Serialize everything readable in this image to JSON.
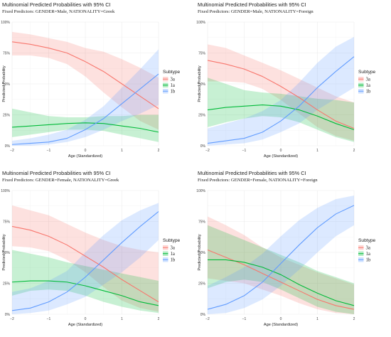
{
  "chart_data": [
    {
      "type": "line",
      "title": "Multinomial Predicted Probabilities with 95% CI",
      "subtitle": "Fixed Predictors:  GENDER=Male, NATIONALITY=Greek",
      "xlabel": "Age (Standardized)",
      "ylabel": "Predicted Probability",
      "xlim": [
        -2,
        2
      ],
      "ylim": [
        0,
        1
      ],
      "x_ticks": [
        -2,
        -1,
        0,
        1,
        2
      ],
      "x_tick_labels": [
        "−2",
        "−1",
        "0",
        "1",
        "2"
      ],
      "y_ticks": [
        0,
        0.25,
        0.5,
        0.75,
        1
      ],
      "y_tick_labels": [
        "0%",
        "25%",
        "50%",
        "75%",
        "100%"
      ],
      "legend_title": "Subtype",
      "legend_position": "right",
      "grid": true,
      "x": [
        -2,
        -1.5,
        -1,
        -0.5,
        0,
        0.5,
        1,
        1.5,
        2
      ],
      "series": [
        {
          "name": "3a",
          "color": "#F8766D",
          "values": [
            0.84,
            0.82,
            0.79,
            0.75,
            0.68,
            0.6,
            0.5,
            0.4,
            0.3
          ],
          "lower": [
            0.73,
            0.73,
            0.71,
            0.66,
            0.56,
            0.43,
            0.31,
            0.2,
            0.13
          ],
          "upper": [
            0.92,
            0.9,
            0.87,
            0.84,
            0.79,
            0.76,
            0.7,
            0.63,
            0.55
          ]
        },
        {
          "name": "1a",
          "color": "#00BA38",
          "values": [
            0.15,
            0.16,
            0.17,
            0.18,
            0.185,
            0.18,
            0.16,
            0.14,
            0.11
          ],
          "lower": [
            0.07,
            0.09,
            0.11,
            0.13,
            0.13,
            0.12,
            0.09,
            0.06,
            0.03
          ],
          "upper": [
            0.3,
            0.27,
            0.24,
            0.23,
            0.23,
            0.24,
            0.24,
            0.25,
            0.25
          ]
        },
        {
          "name": "1b",
          "color": "#619CFF",
          "values": [
            0.01,
            0.02,
            0.03,
            0.06,
            0.13,
            0.22,
            0.34,
            0.46,
            0.58
          ],
          "lower": [
            0.0,
            0.0,
            0.01,
            0.03,
            0.07,
            0.13,
            0.2,
            0.26,
            0.33
          ],
          "upper": [
            0.04,
            0.06,
            0.09,
            0.13,
            0.21,
            0.32,
            0.47,
            0.62,
            0.78
          ]
        }
      ]
    },
    {
      "type": "line",
      "title": "Multinomial Predicted Probabilities with 95% CI",
      "subtitle": "Fixed Predictors:  GENDER=Male, NATIONALITY=Foreign",
      "xlabel": "Age (Standardized)",
      "ylabel": "Predicted Probability",
      "xlim": [
        -2,
        2
      ],
      "ylim": [
        0,
        1
      ],
      "x_ticks": [
        -2,
        -1,
        0,
        1,
        2
      ],
      "x_tick_labels": [
        "−2",
        "−1",
        "0",
        "1",
        "2"
      ],
      "y_ticks": [
        0,
        0.25,
        0.5,
        0.75,
        1
      ],
      "y_tick_labels": [
        "0%",
        "25%",
        "50%",
        "75%",
        "100%"
      ],
      "legend_title": "Subtype",
      "legend_position": "right",
      "grid": true,
      "x": [
        -2,
        -1.5,
        -1,
        -0.5,
        0,
        0.5,
        1,
        1.5,
        2
      ],
      "series": [
        {
          "name": "3a",
          "color": "#F8766D",
          "values": [
            0.69,
            0.66,
            0.62,
            0.56,
            0.48,
            0.39,
            0.29,
            0.2,
            0.14
          ],
          "lower": [
            0.52,
            0.52,
            0.51,
            0.46,
            0.37,
            0.26,
            0.15,
            0.08,
            0.04
          ],
          "upper": [
            0.82,
            0.79,
            0.73,
            0.67,
            0.61,
            0.54,
            0.47,
            0.4,
            0.35
          ]
        },
        {
          "name": "1a",
          "color": "#00BA38",
          "values": [
            0.29,
            0.31,
            0.32,
            0.33,
            0.32,
            0.29,
            0.24,
            0.18,
            0.13
          ],
          "lower": [
            0.15,
            0.19,
            0.22,
            0.24,
            0.23,
            0.19,
            0.13,
            0.07,
            0.03
          ],
          "upper": [
            0.55,
            0.5,
            0.45,
            0.43,
            0.42,
            0.4,
            0.38,
            0.37,
            0.35
          ]
        },
        {
          "name": "1b",
          "color": "#619CFF",
          "values": [
            0.02,
            0.04,
            0.06,
            0.11,
            0.2,
            0.32,
            0.47,
            0.6,
            0.72
          ],
          "lower": [
            0.0,
            0.01,
            0.02,
            0.05,
            0.11,
            0.18,
            0.29,
            0.38,
            0.47
          ],
          "upper": [
            0.14,
            0.18,
            0.22,
            0.28,
            0.37,
            0.51,
            0.67,
            0.8,
            0.88
          ]
        }
      ]
    },
    {
      "type": "line",
      "title": "Multinomial Predicted Probabilities with 95% CI",
      "subtitle": "Fixed Predictors:  GENDER=Female, NATIONALITY=Greek",
      "xlabel": "Age (Standardized)",
      "ylabel": "Predicted Probability",
      "xlim": [
        -2,
        2
      ],
      "ylim": [
        0,
        1
      ],
      "x_ticks": [
        -2,
        -1,
        0,
        1,
        2
      ],
      "x_tick_labels": [
        "−2",
        "−1",
        "0",
        "1",
        "2"
      ],
      "y_ticks": [
        0,
        0.25,
        0.5,
        0.75,
        1
      ],
      "y_tick_labels": [
        "0%",
        "25%",
        "50%",
        "75%",
        "100%"
      ],
      "legend_title": "Subtype",
      "legend_position": "right",
      "grid": true,
      "x": [
        -2,
        -1.5,
        -1,
        -0.5,
        0,
        0.5,
        1,
        1.5,
        2
      ],
      "series": [
        {
          "name": "3a",
          "color": "#F8766D",
          "values": [
            0.71,
            0.68,
            0.63,
            0.56,
            0.47,
            0.38,
            0.28,
            0.19,
            0.1
          ],
          "lower": [
            0.55,
            0.54,
            0.51,
            0.44,
            0.34,
            0.22,
            0.11,
            0.05,
            0.02
          ],
          "upper": [
            0.88,
            0.84,
            0.8,
            0.73,
            0.66,
            0.6,
            0.55,
            0.52,
            0.5
          ]
        },
        {
          "name": "1a",
          "color": "#00BA38",
          "values": [
            0.26,
            0.27,
            0.27,
            0.26,
            0.23,
            0.19,
            0.15,
            0.1,
            0.07
          ],
          "lower": [
            0.15,
            0.19,
            0.2,
            0.19,
            0.15,
            0.1,
            0.06,
            0.03,
            0.01
          ],
          "upper": [
            0.52,
            0.49,
            0.46,
            0.42,
            0.39,
            0.36,
            0.33,
            0.3,
            0.27
          ]
        },
        {
          "name": "1b",
          "color": "#619CFF",
          "values": [
            0.03,
            0.05,
            0.1,
            0.18,
            0.3,
            0.44,
            0.58,
            0.71,
            0.83
          ],
          "lower": [
            0.0,
            0.01,
            0.03,
            0.08,
            0.14,
            0.24,
            0.34,
            0.46,
            0.6
          ],
          "upper": [
            0.18,
            0.21,
            0.27,
            0.35,
            0.5,
            0.64,
            0.76,
            0.84,
            0.9
          ]
        }
      ]
    },
    {
      "type": "line",
      "title": "Multinomial Predicted Probabilities with 95% CI",
      "subtitle": "Fixed Predictors:  GENDER=Female, NATIONALITY=Foreign",
      "xlabel": "Age (Standardized)",
      "ylabel": "Predicted Probability",
      "xlim": [
        -2,
        2
      ],
      "ylim": [
        0,
        1
      ],
      "x_ticks": [
        -2,
        -1,
        0,
        1,
        2
      ],
      "x_tick_labels": [
        "−2",
        "−1",
        "0",
        "1",
        "2"
      ],
      "y_ticks": [
        0,
        0.25,
        0.5,
        0.75,
        1
      ],
      "y_tick_labels": [
        "0%",
        "25%",
        "50%",
        "75%",
        "100%"
      ],
      "legend_title": "Subtype",
      "legend_position": "right",
      "grid": true,
      "x": [
        -2,
        -1.5,
        -1,
        -0.5,
        0,
        0.5,
        1,
        1.5,
        2
      ],
      "series": [
        {
          "name": "3a",
          "color": "#F8766D",
          "values": [
            0.52,
            0.46,
            0.4,
            0.33,
            0.26,
            0.19,
            0.12,
            0.07,
            0.04
          ],
          "lower": [
            0.29,
            0.27,
            0.25,
            0.2,
            0.15,
            0.09,
            0.04,
            0.01,
            0.0
          ],
          "upper": [
            0.79,
            0.72,
            0.64,
            0.54,
            0.46,
            0.4,
            0.34,
            0.29,
            0.24
          ]
        },
        {
          "name": "1a",
          "color": "#00BA38",
          "values": [
            0.44,
            0.44,
            0.42,
            0.38,
            0.32,
            0.24,
            0.17,
            0.11,
            0.07
          ],
          "lower": [
            0.21,
            0.26,
            0.28,
            0.26,
            0.2,
            0.13,
            0.06,
            0.02,
            0.0
          ],
          "upper": [
            0.72,
            0.66,
            0.6,
            0.54,
            0.48,
            0.42,
            0.35,
            0.3,
            0.25
          ]
        },
        {
          "name": "1b",
          "color": "#619CFF",
          "values": [
            0.04,
            0.08,
            0.15,
            0.26,
            0.41,
            0.56,
            0.7,
            0.81,
            0.88
          ],
          "lower": [
            0.0,
            0.01,
            0.05,
            0.12,
            0.23,
            0.36,
            0.5,
            0.63,
            0.72
          ],
          "upper": [
            0.23,
            0.3,
            0.38,
            0.49,
            0.63,
            0.76,
            0.86,
            0.93,
            0.96
          ]
        }
      ]
    }
  ]
}
